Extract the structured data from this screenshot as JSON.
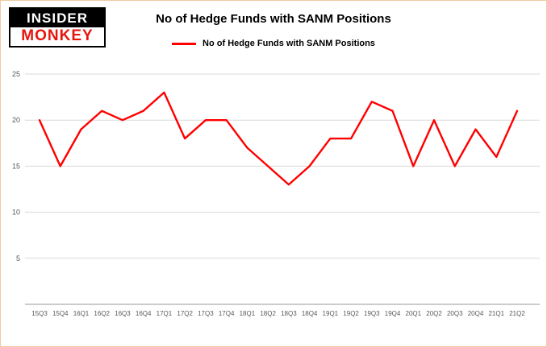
{
  "logo": {
    "line1": "INSIDER",
    "line2": "MONKEY"
  },
  "colors": {
    "line_red": "#ff0000",
    "logo_red": "#e8140c",
    "page_border": "#f3c9a2",
    "gridline": "#d9d9d9",
    "axis_line": "#9a9a9a",
    "axis_text": "#595959"
  },
  "chart_data": {
    "type": "line",
    "title": "No of Hedge Funds with SANM Positions",
    "xlabel": "",
    "ylabel": "",
    "ylim": [
      0,
      25
    ],
    "yticks": [
      5,
      10,
      15,
      20,
      25
    ],
    "grid": true,
    "legend_position": "top",
    "categories": [
      "15Q3",
      "15Q4",
      "16Q1",
      "16Q2",
      "16Q3",
      "16Q4",
      "17Q1",
      "17Q2",
      "17Q3",
      "17Q4",
      "18Q1",
      "18Q2",
      "18Q3",
      "18Q4",
      "19Q1",
      "19Q2",
      "19Q3",
      "19Q4",
      "20Q1",
      "20Q2",
      "20Q3",
      "20Q4",
      "21Q1",
      "21Q2"
    ],
    "series": [
      {
        "name": "No of Hedge Funds with SANM Positions",
        "color": "#ff0000",
        "values": [
          20,
          15,
          19,
          21,
          20,
          21,
          23,
          18,
          20,
          20,
          17,
          15,
          13,
          15,
          18,
          18,
          22,
          21,
          15,
          20,
          15,
          19,
          16,
          21
        ]
      }
    ]
  }
}
